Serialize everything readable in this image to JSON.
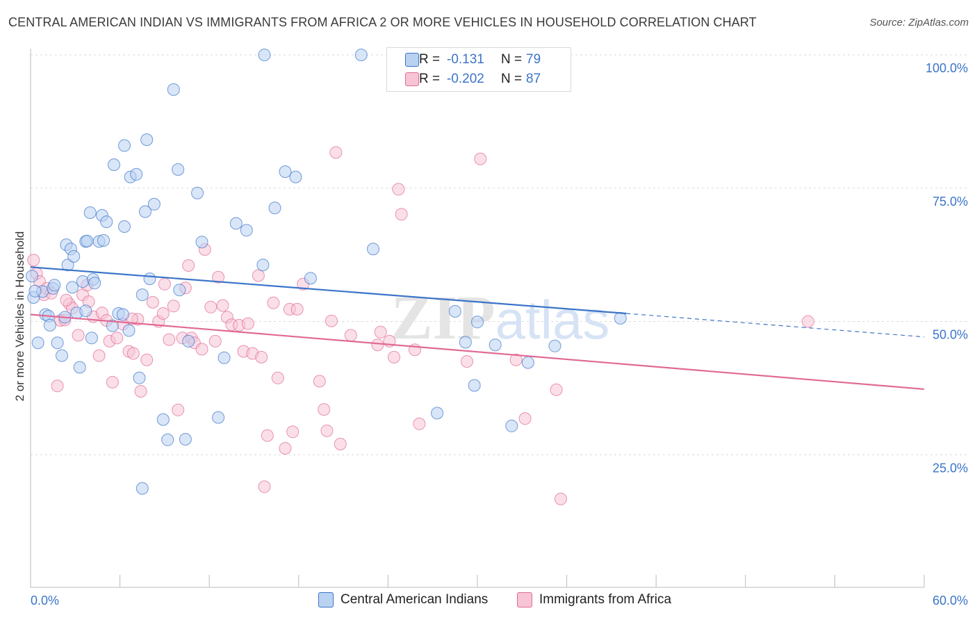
{
  "title": "CENTRAL AMERICAN INDIAN VS IMMIGRANTS FROM AFRICA 2 OR MORE VEHICLES IN HOUSEHOLD CORRELATION CHART",
  "source": "Source: ZipAtlas.com",
  "watermark": "ZIPatlas",
  "colors": {
    "blue": "#3b74c9",
    "blue_fill": "#b9d2f2",
    "pink": "#e06a95",
    "pink_fill": "#f7c4d5",
    "grid": "#d9d9d9"
  },
  "legend": {
    "rows": [
      {
        "r_label": "R =",
        "r_value": "-0.131",
        "n_label": "N =",
        "n_value": "79"
      },
      {
        "r_label": "R =",
        "r_value": "-0.202",
        "n_label": "N =",
        "n_value": "87"
      }
    ]
  },
  "bottom_legend": {
    "series1": "Central American Indians",
    "series2": "Immigrants from Africa"
  },
  "chart_data": {
    "type": "scatter",
    "xlabel": "",
    "ylabel": "2 or more Vehicles in Household",
    "xlim": [
      0,
      60
    ],
    "ylim": [
      0,
      105
    ],
    "x_tick_labels": [
      "0.0%",
      "60.0%"
    ],
    "y_ticks": [
      25,
      50,
      75,
      100
    ],
    "y_tick_labels": [
      "25.0%",
      "50.0%",
      "75.0%",
      "100.0%"
    ],
    "series": [
      {
        "name": "Central American Indians",
        "color": "#3b74c9",
        "trend": {
          "x0": 0,
          "y0": 60.2,
          "x1": 40,
          "y1": 51.5,
          "dashed_to_x": 60,
          "dashed_to_y": 47.1
        },
        "points": [
          [
            0.2,
            54.5
          ],
          [
            0.5,
            46.0
          ],
          [
            0.8,
            55.6
          ],
          [
            1.0,
            51.3
          ],
          [
            1.2,
            51.0
          ],
          [
            1.3,
            49.3
          ],
          [
            1.5,
            56.2
          ],
          [
            1.8,
            46.0
          ],
          [
            2.1,
            43.6
          ],
          [
            2.3,
            50.8
          ],
          [
            2.4,
            64.4
          ],
          [
            2.5,
            60.6
          ],
          [
            2.7,
            63.6
          ],
          [
            2.8,
            56.4
          ],
          [
            2.9,
            62.2
          ],
          [
            3.1,
            51.6
          ],
          [
            3.3,
            41.4
          ],
          [
            3.5,
            57.5
          ],
          [
            3.7,
            65.0
          ],
          [
            3.8,
            65.1
          ],
          [
            4.0,
            70.4
          ],
          [
            4.2,
            57.9
          ],
          [
            4.3,
            57.2
          ],
          [
            4.6,
            65.0
          ],
          [
            4.8,
            69.9
          ],
          [
            4.9,
            65.2
          ],
          [
            5.1,
            68.7
          ],
          [
            5.5,
            49.2
          ],
          [
            5.6,
            79.4
          ],
          [
            5.9,
            51.5
          ],
          [
            6.2,
            51.3
          ],
          [
            6.3,
            67.8
          ],
          [
            6.3,
            83.0
          ],
          [
            6.6,
            48.3
          ],
          [
            6.7,
            77.1
          ],
          [
            7.1,
            77.6
          ],
          [
            7.3,
            39.4
          ],
          [
            7.5,
            55.0
          ],
          [
            7.5,
            18.7
          ],
          [
            7.7,
            70.6
          ],
          [
            7.8,
            84.1
          ],
          [
            8.0,
            58.0
          ],
          [
            8.3,
            72.0
          ],
          [
            8.9,
            31.6
          ],
          [
            9.2,
            27.8
          ],
          [
            9.6,
            93.5
          ],
          [
            9.9,
            78.5
          ],
          [
            10.0,
            55.9
          ],
          [
            10.4,
            27.9
          ],
          [
            10.6,
            46.3
          ],
          [
            11.2,
            74.1
          ],
          [
            11.5,
            64.9
          ],
          [
            12.6,
            32.0
          ],
          [
            13.0,
            43.2
          ],
          [
            13.8,
            68.4
          ],
          [
            14.5,
            67.1
          ],
          [
            15.6,
            60.6
          ],
          [
            15.7,
            100.0
          ],
          [
            16.4,
            71.3
          ],
          [
            17.1,
            78.1
          ],
          [
            17.8,
            77.1
          ],
          [
            18.8,
            58.1
          ],
          [
            22.2,
            100.0
          ],
          [
            23.0,
            63.6
          ],
          [
            27.3,
            32.8
          ],
          [
            28.5,
            51.9
          ],
          [
            29.2,
            46.1
          ],
          [
            29.8,
            38.0
          ],
          [
            30.0,
            49.9
          ],
          [
            31.2,
            45.6
          ],
          [
            32.3,
            30.4
          ],
          [
            33.4,
            42.3
          ],
          [
            35.2,
            45.4
          ],
          [
            39.6,
            50.6
          ],
          [
            0.1,
            58.5
          ],
          [
            0.3,
            55.7
          ],
          [
            1.6,
            56.8
          ],
          [
            3.7,
            52.0
          ],
          [
            4.1,
            46.9
          ]
        ]
      },
      {
        "name": "Immigrants from Africa",
        "color": "#e06a95",
        "trend": {
          "x0": 0,
          "y0": 51.3,
          "x1": 60,
          "y1": 37.3
        },
        "points": [
          [
            0.2,
            61.5
          ],
          [
            0.4,
            59.0
          ],
          [
            0.6,
            57.5
          ],
          [
            0.9,
            55.0
          ],
          [
            1.1,
            56.2
          ],
          [
            1.4,
            55.3
          ],
          [
            1.8,
            37.9
          ],
          [
            2.0,
            50.2
          ],
          [
            2.3,
            50.3
          ],
          [
            2.6,
            53.3
          ],
          [
            2.8,
            52.5
          ],
          [
            3.2,
            47.4
          ],
          [
            3.5,
            55.0
          ],
          [
            3.8,
            56.8
          ],
          [
            3.9,
            53.7
          ],
          [
            4.2,
            50.9
          ],
          [
            4.6,
            43.6
          ],
          [
            4.8,
            51.6
          ],
          [
            5.1,
            50.2
          ],
          [
            5.3,
            46.3
          ],
          [
            5.5,
            38.6
          ],
          [
            5.8,
            46.9
          ],
          [
            6.2,
            49.5
          ],
          [
            6.6,
            44.4
          ],
          [
            6.9,
            44.0
          ],
          [
            7.2,
            50.4
          ],
          [
            7.4,
            36.9
          ],
          [
            7.8,
            42.8
          ],
          [
            8.2,
            53.6
          ],
          [
            8.6,
            50.0
          ],
          [
            8.9,
            51.5
          ],
          [
            9.0,
            57.0
          ],
          [
            9.3,
            46.6
          ],
          [
            9.6,
            52.9
          ],
          [
            9.9,
            33.4
          ],
          [
            10.2,
            46.9
          ],
          [
            10.4,
            56.3
          ],
          [
            10.6,
            60.5
          ],
          [
            10.8,
            46.9
          ],
          [
            11.0,
            46.0
          ],
          [
            11.5,
            44.8
          ],
          [
            11.7,
            63.5
          ],
          [
            12.1,
            52.7
          ],
          [
            12.4,
            46.3
          ],
          [
            12.6,
            58.3
          ],
          [
            13.2,
            50.8
          ],
          [
            13.5,
            49.4
          ],
          [
            14.0,
            49.3
          ],
          [
            14.3,
            44.4
          ],
          [
            14.6,
            49.6
          ],
          [
            14.9,
            44.0
          ],
          [
            15.3,
            58.6
          ],
          [
            15.5,
            43.3
          ],
          [
            15.7,
            19.0
          ],
          [
            15.9,
            28.6
          ],
          [
            16.3,
            53.5
          ],
          [
            16.6,
            39.4
          ],
          [
            17.1,
            26.2
          ],
          [
            17.4,
            52.3
          ],
          [
            17.6,
            29.3
          ],
          [
            17.9,
            52.3
          ],
          [
            18.3,
            57.0
          ],
          [
            19.4,
            38.8
          ],
          [
            19.7,
            33.5
          ],
          [
            19.9,
            29.5
          ],
          [
            20.2,
            50.1
          ],
          [
            20.5,
            81.7
          ],
          [
            20.8,
            27.0
          ],
          [
            21.5,
            47.4
          ],
          [
            23.3,
            45.6
          ],
          [
            23.5,
            48.0
          ],
          [
            24.1,
            46.3
          ],
          [
            24.4,
            43.3
          ],
          [
            24.7,
            74.8
          ],
          [
            24.9,
            70.1
          ],
          [
            25.8,
            44.7
          ],
          [
            26.1,
            30.8
          ],
          [
            29.3,
            42.5
          ],
          [
            30.2,
            80.5
          ],
          [
            32.6,
            42.8
          ],
          [
            33.2,
            31.8
          ],
          [
            35.3,
            37.2
          ],
          [
            35.6,
            16.7
          ],
          [
            52.2,
            50.0
          ],
          [
            2.4,
            54.0
          ],
          [
            12.9,
            53.0
          ],
          [
            6.8,
            50.5
          ]
        ]
      }
    ]
  }
}
